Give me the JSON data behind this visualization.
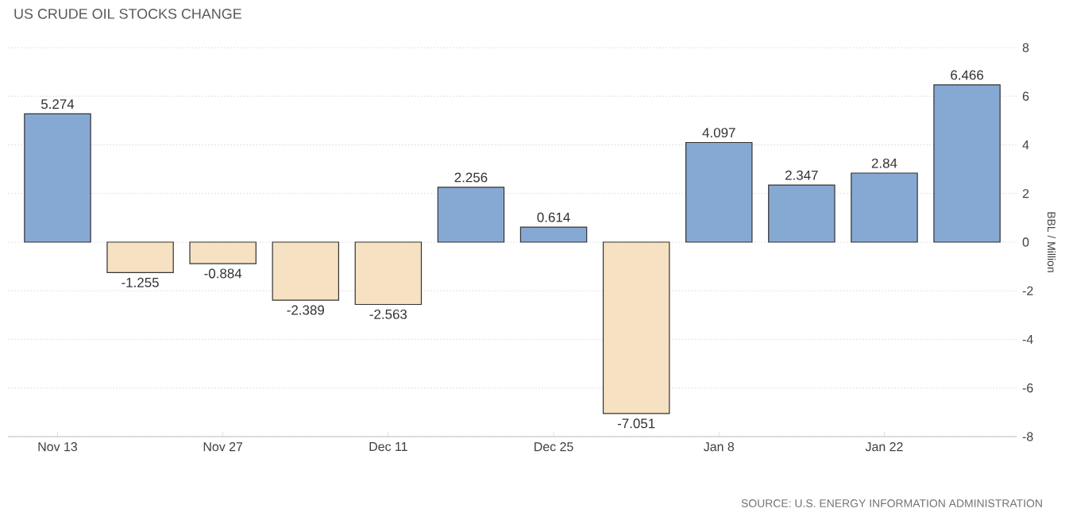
{
  "chart_data": {
    "type": "bar",
    "title": "US CRUDE OIL STOCKS CHANGE",
    "ylabel": "BBL / Million",
    "categories": [
      "Nov 13",
      null,
      "Nov 27",
      null,
      "Dec 11",
      null,
      "Dec 25",
      null,
      "Jan 8",
      null,
      "Jan 22",
      null
    ],
    "values": [
      5.274,
      -1.255,
      -0.884,
      -2.389,
      -2.563,
      2.256,
      0.614,
      -7.051,
      4.097,
      2.347,
      2.84,
      6.466
    ],
    "colors": [
      "#86a9d3",
      "#f6e2c2",
      "#f6e2c2",
      "#f6e2c2",
      "#f6e2c2",
      "#86a9d3",
      "#86a9d3",
      "#f6e2c2",
      "#86a9d3",
      "#86a9d3",
      "#86a9d3",
      "#86a9d3"
    ],
    "ylim": [
      -8,
      8
    ],
    "yticks": [
      -8,
      -6,
      -4,
      -2,
      0,
      2,
      4,
      6,
      8
    ],
    "grid": "y",
    "data_labels": true,
    "annotations": [
      "SOURCE: U.S. ENERGY INFORMATION ADMINISTRATION"
    ]
  }
}
